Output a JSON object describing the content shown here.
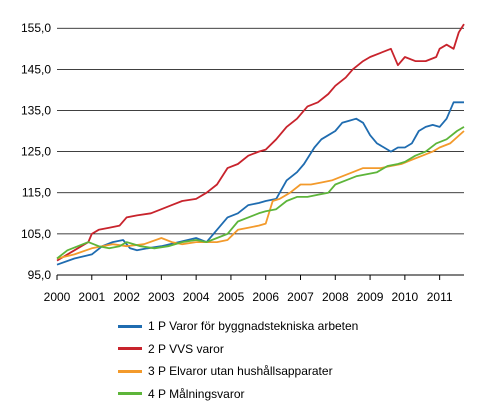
{
  "chart_data": {
    "type": "line",
    "title": "",
    "xlabel": "",
    "ylabel": "",
    "ylim": [
      95,
      157
    ],
    "y_ticks": [
      "95,0",
      "105,0",
      "115,0",
      "125,0",
      "135,0",
      "145,0",
      "155,0"
    ],
    "x_ticks": [
      "2000",
      "2001",
      "2002",
      "2003",
      "2004",
      "2005",
      "2006",
      "2007",
      "2008",
      "2009",
      "2010",
      "2011"
    ],
    "x_range": [
      2000.0,
      2011.7
    ],
    "grid": "horizontal",
    "legend_position": "bottom",
    "series": [
      {
        "name": "1 P Varor för byggnadstekniska arbeten",
        "color": "#1f6cb0",
        "points": [
          [
            2000.0,
            97.5
          ],
          [
            2000.5,
            99
          ],
          [
            2001.0,
            100
          ],
          [
            2001.3,
            102
          ],
          [
            2001.6,
            103
          ],
          [
            2001.9,
            103.5
          ],
          [
            2002.1,
            101.5
          ],
          [
            2002.3,
            101
          ],
          [
            2002.6,
            101.5
          ],
          [
            2003.0,
            102
          ],
          [
            2003.5,
            103
          ],
          [
            2004.0,
            104
          ],
          [
            2004.3,
            103
          ],
          [
            2004.6,
            106
          ],
          [
            2004.9,
            109
          ],
          [
            2005.2,
            110
          ],
          [
            2005.5,
            112
          ],
          [
            2005.8,
            112.5
          ],
          [
            2006.0,
            113
          ],
          [
            2006.3,
            113.5
          ],
          [
            2006.6,
            118
          ],
          [
            2006.9,
            120
          ],
          [
            2007.1,
            122
          ],
          [
            2007.4,
            126
          ],
          [
            2007.6,
            128
          ],
          [
            2007.8,
            129
          ],
          [
            2008.0,
            130
          ],
          [
            2008.2,
            132
          ],
          [
            2008.4,
            132.5
          ],
          [
            2008.6,
            133
          ],
          [
            2008.8,
            132
          ],
          [
            2009.0,
            129
          ],
          [
            2009.2,
            127
          ],
          [
            2009.4,
            126
          ],
          [
            2009.6,
            125
          ],
          [
            2009.8,
            126
          ],
          [
            2010.0,
            126
          ],
          [
            2010.2,
            127
          ],
          [
            2010.4,
            130
          ],
          [
            2010.6,
            131
          ],
          [
            2010.8,
            131.5
          ],
          [
            2011.0,
            131
          ],
          [
            2011.2,
            133
          ],
          [
            2011.4,
            137
          ],
          [
            2011.7,
            137
          ]
        ]
      },
      {
        "name": "2 P VVS varor",
        "color": "#c8232c",
        "points": [
          [
            2000.0,
            98.5
          ],
          [
            2000.5,
            101
          ],
          [
            2000.9,
            103
          ],
          [
            2001.0,
            105
          ],
          [
            2001.2,
            106
          ],
          [
            2001.5,
            106.5
          ],
          [
            2001.8,
            107
          ],
          [
            2002.0,
            109
          ],
          [
            2002.3,
            109.5
          ],
          [
            2002.7,
            110
          ],
          [
            2003.0,
            111
          ],
          [
            2003.3,
            112
          ],
          [
            2003.6,
            113
          ],
          [
            2004.0,
            113.5
          ],
          [
            2004.3,
            115
          ],
          [
            2004.6,
            117
          ],
          [
            2004.9,
            121
          ],
          [
            2005.2,
            122
          ],
          [
            2005.5,
            124
          ],
          [
            2005.8,
            125
          ],
          [
            2006.0,
            125.5
          ],
          [
            2006.3,
            128
          ],
          [
            2006.6,
            131
          ],
          [
            2006.9,
            133
          ],
          [
            2007.2,
            136
          ],
          [
            2007.5,
            137
          ],
          [
            2007.8,
            139
          ],
          [
            2008.0,
            141
          ],
          [
            2008.3,
            143
          ],
          [
            2008.5,
            145
          ],
          [
            2008.8,
            147
          ],
          [
            2009.0,
            148
          ],
          [
            2009.3,
            149
          ],
          [
            2009.6,
            150
          ],
          [
            2009.8,
            146
          ],
          [
            2010.0,
            148
          ],
          [
            2010.3,
            147
          ],
          [
            2010.6,
            147
          ],
          [
            2010.9,
            148
          ],
          [
            2011.0,
            150
          ],
          [
            2011.2,
            151
          ],
          [
            2011.4,
            150
          ],
          [
            2011.55,
            154
          ],
          [
            2011.7,
            156
          ]
        ]
      },
      {
        "name": "3 P Elvaror utan hushållsapparater",
        "color": "#f39a2b",
        "points": [
          [
            2000.0,
            99
          ],
          [
            2000.5,
            100
          ],
          [
            2001.0,
            101.5
          ],
          [
            2001.3,
            102
          ],
          [
            2001.6,
            102.5
          ],
          [
            2002.0,
            102
          ],
          [
            2002.5,
            102.5
          ],
          [
            2003.0,
            104
          ],
          [
            2003.3,
            103
          ],
          [
            2003.6,
            102.5
          ],
          [
            2004.0,
            103
          ],
          [
            2004.3,
            103
          ],
          [
            2004.6,
            103
          ],
          [
            2004.9,
            103.5
          ],
          [
            2005.2,
            106
          ],
          [
            2005.5,
            106.5
          ],
          [
            2005.8,
            107
          ],
          [
            2006.0,
            107.5
          ],
          [
            2006.2,
            113
          ],
          [
            2006.4,
            113.5
          ],
          [
            2006.7,
            115
          ],
          [
            2007.0,
            117
          ],
          [
            2007.3,
            117
          ],
          [
            2007.6,
            117.5
          ],
          [
            2007.9,
            118
          ],
          [
            2008.2,
            119
          ],
          [
            2008.5,
            120
          ],
          [
            2008.8,
            121
          ],
          [
            2009.0,
            121
          ],
          [
            2009.3,
            121
          ],
          [
            2009.6,
            121.5
          ],
          [
            2009.9,
            122
          ],
          [
            2010.2,
            123
          ],
          [
            2010.5,
            124
          ],
          [
            2010.8,
            125
          ],
          [
            2011.0,
            126
          ],
          [
            2011.3,
            127
          ],
          [
            2011.7,
            130
          ]
        ]
      },
      {
        "name": "4 P Målningsvaror",
        "color": "#5db53a",
        "points": [
          [
            2000.0,
            99
          ],
          [
            2000.3,
            101
          ],
          [
            2000.6,
            102
          ],
          [
            2000.9,
            103
          ],
          [
            2001.2,
            102
          ],
          [
            2001.5,
            101.5
          ],
          [
            2001.8,
            102
          ],
          [
            2002.0,
            103
          ],
          [
            2002.4,
            102
          ],
          [
            2002.8,
            101.5
          ],
          [
            2003.2,
            102
          ],
          [
            2003.6,
            103
          ],
          [
            2004.0,
            103.5
          ],
          [
            2004.3,
            103
          ],
          [
            2004.6,
            104
          ],
          [
            2004.9,
            105
          ],
          [
            2005.2,
            108
          ],
          [
            2005.5,
            109
          ],
          [
            2005.8,
            110
          ],
          [
            2006.0,
            110.5
          ],
          [
            2006.3,
            111
          ],
          [
            2006.6,
            113
          ],
          [
            2006.9,
            114
          ],
          [
            2007.2,
            114
          ],
          [
            2007.5,
            114.5
          ],
          [
            2007.8,
            115
          ],
          [
            2008.0,
            117
          ],
          [
            2008.3,
            118
          ],
          [
            2008.6,
            119
          ],
          [
            2008.9,
            119.5
          ],
          [
            2009.2,
            120
          ],
          [
            2009.5,
            121.5
          ],
          [
            2009.8,
            122
          ],
          [
            2010.0,
            122.5
          ],
          [
            2010.3,
            124
          ],
          [
            2010.6,
            125
          ],
          [
            2010.9,
            127
          ],
          [
            2011.2,
            128
          ],
          [
            2011.5,
            130
          ],
          [
            2011.7,
            131
          ]
        ]
      }
    ]
  }
}
